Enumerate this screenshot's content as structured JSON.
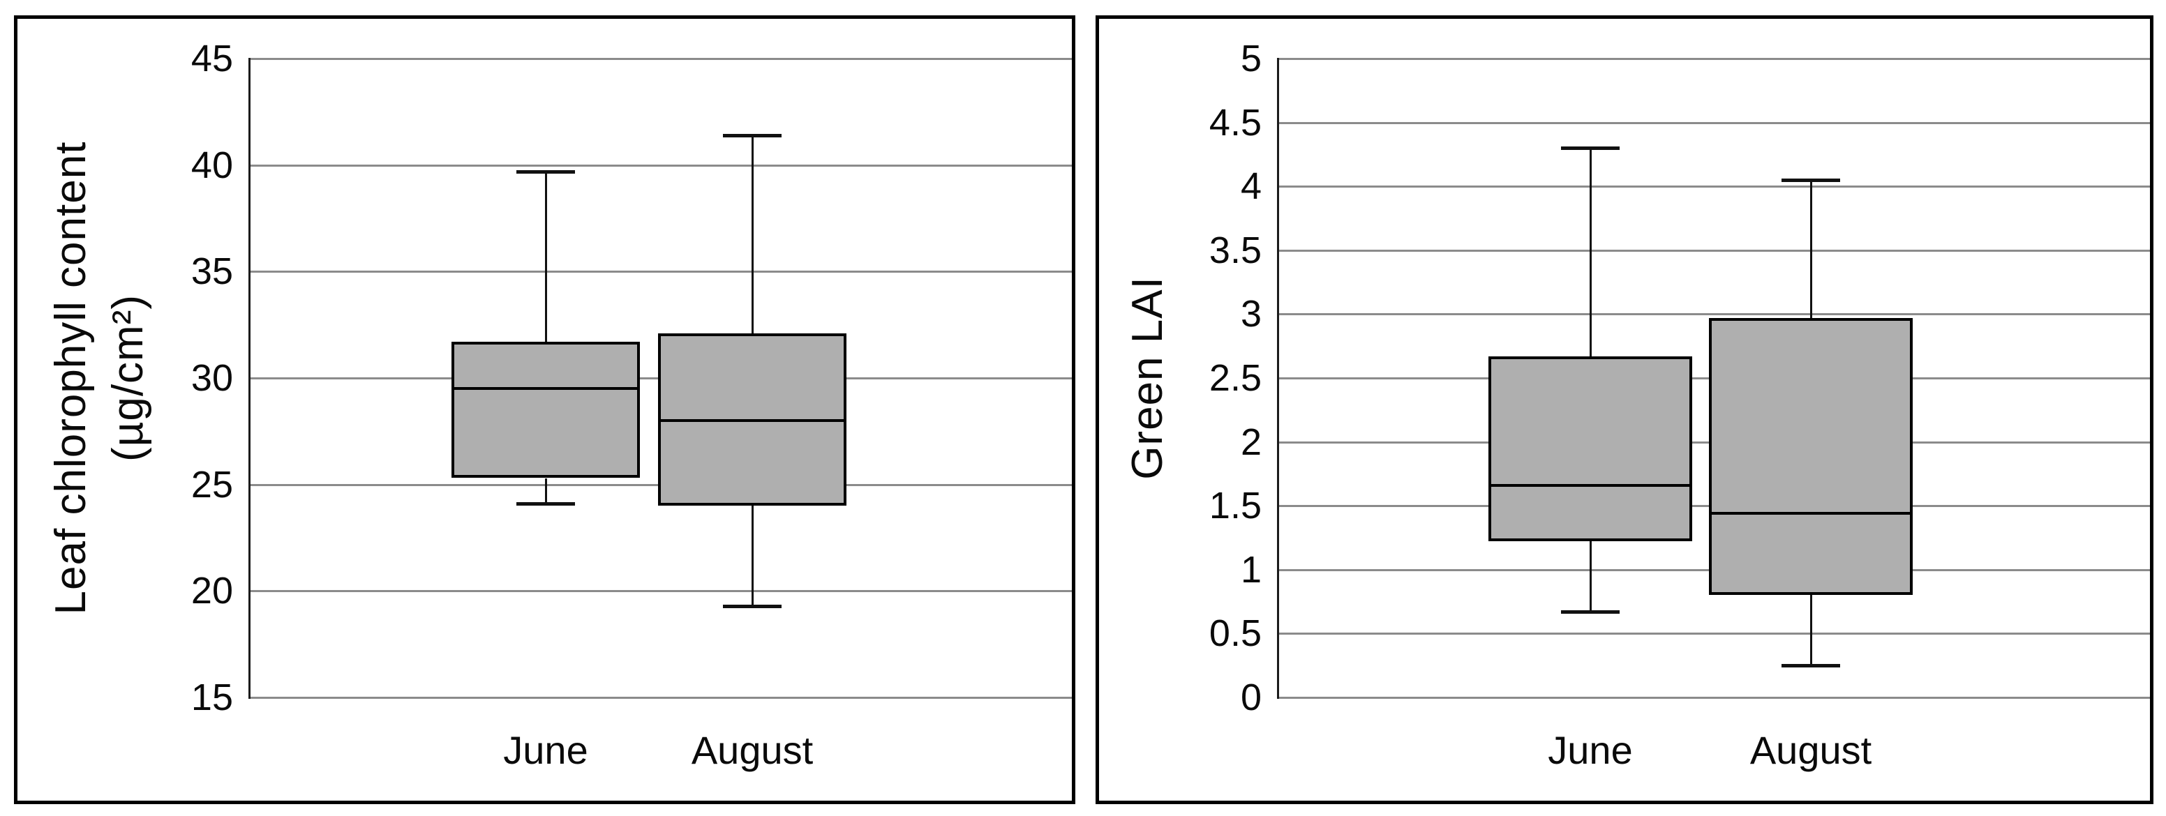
{
  "figure": {
    "description": "Two side-by-side box-and-whisker plots comparing June and August",
    "background": "#ffffff"
  },
  "colors": {
    "box_fill": "#afafaf",
    "box_border": "#000000",
    "median": "#000000",
    "whisker": "#111111",
    "gridline": "#8b8b8b",
    "axis_line": "#1c1c1c",
    "frame_border": "#000000",
    "text": "#0a0a0a"
  },
  "chart_data": [
    {
      "type": "box",
      "title": "",
      "ylabel_lines": [
        "Leaf chlorophyll content",
        "(µg/cm²)"
      ],
      "xlabel": "",
      "ylim": [
        15,
        45
      ],
      "yticks": [
        15,
        20,
        25,
        30,
        35,
        40,
        45
      ],
      "grid": true,
      "legend": false,
      "categories": [
        "June",
        "August"
      ],
      "series": [
        {
          "name": "June",
          "whisker_low": 24.1,
          "q1": 25.3,
          "median": 29.5,
          "q3": 31.7,
          "whisker_high": 39.7
        },
        {
          "name": "August",
          "whisker_low": 19.3,
          "q1": 24.0,
          "median": 28.0,
          "q3": 32.1,
          "whisker_high": 41.4
        }
      ]
    },
    {
      "type": "box",
      "title": "",
      "ylabel_lines": [
        "Green LAI"
      ],
      "xlabel": "",
      "ylim": [
        0,
        5
      ],
      "yticks": [
        0,
        0.5,
        1,
        1.5,
        2,
        2.5,
        3,
        3.5,
        4,
        4.5,
        5
      ],
      "grid": true,
      "legend": false,
      "categories": [
        "June",
        "August"
      ],
      "series": [
        {
          "name": "June",
          "whisker_low": 0.67,
          "q1": 1.22,
          "median": 1.66,
          "q3": 2.67,
          "whisker_high": 4.3
        },
        {
          "name": "August",
          "whisker_low": 0.25,
          "q1": 0.8,
          "median": 1.44,
          "q3": 2.97,
          "whisker_high": 4.05
        }
      ]
    }
  ]
}
